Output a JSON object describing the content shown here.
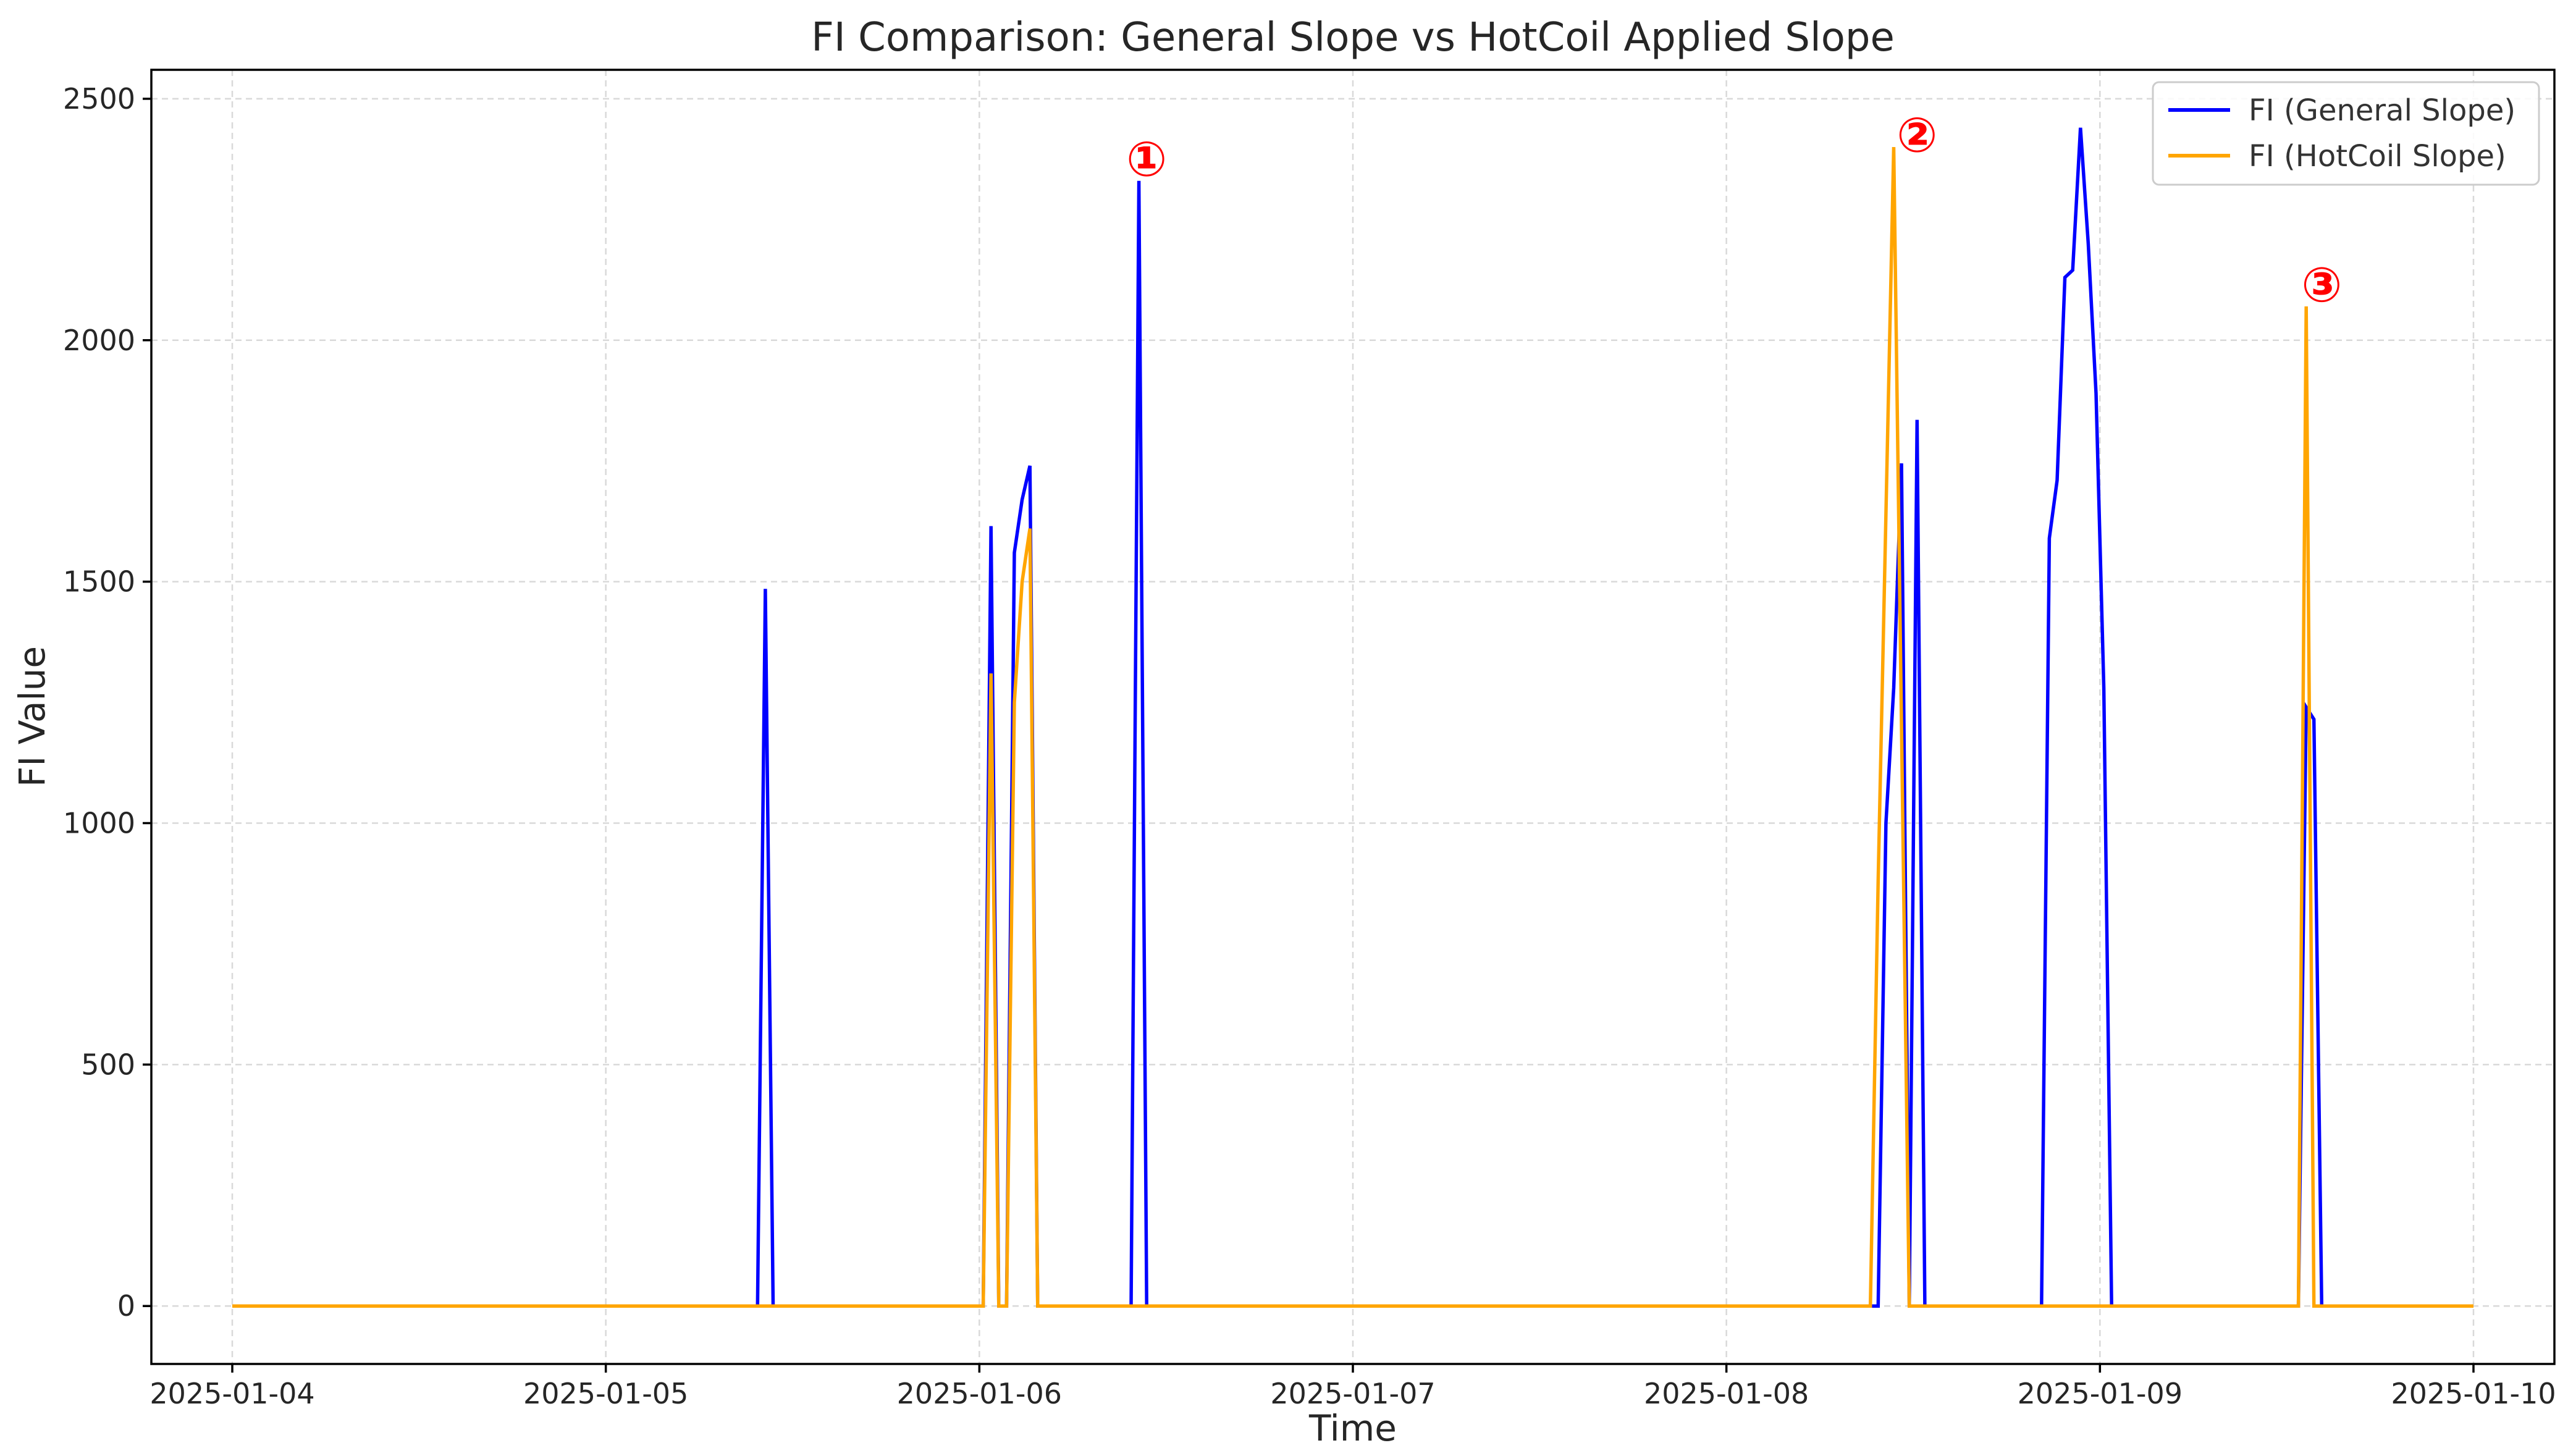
{
  "chart_data": {
    "type": "line",
    "title": "FI Comparison: General Slope vs HotCoil Applied Slope",
    "xlabel": "Time",
    "ylabel": "FI Value",
    "x_axis_type": "datetime",
    "xlim": [
      "2025-01-03 18:48",
      "2025-01-10 05:12"
    ],
    "ylim": [
      -120,
      2560
    ],
    "xticks": [
      "2025-01-04",
      "2025-01-05",
      "2025-01-06",
      "2025-01-07",
      "2025-01-08",
      "2025-01-09",
      "2025-01-10"
    ],
    "yticks": [
      0,
      500,
      1000,
      1500,
      2000,
      2500
    ],
    "grid": true,
    "legend_position": "top-right",
    "series": [
      {
        "name": "FI (General Slope)",
        "color": "#0000ff",
        "points": [
          [
            "2025-01-04 00:00",
            0
          ],
          [
            "2025-01-05 09:45",
            0
          ],
          [
            "2025-01-05 10:15",
            1485
          ],
          [
            "2025-01-05 10:45",
            0
          ],
          [
            "2025-01-06 00:15",
            0
          ],
          [
            "2025-01-06 00:45",
            1615
          ],
          [
            "2025-01-06 01:15",
            0
          ],
          [
            "2025-01-06 01:45",
            0
          ],
          [
            "2025-01-06 02:15",
            1560
          ],
          [
            "2025-01-06 02:45",
            1670
          ],
          [
            "2025-01-06 03:15",
            1740
          ],
          [
            "2025-01-06 03:45",
            0
          ],
          [
            "2025-01-06 09:45",
            0
          ],
          [
            "2025-01-06 10:15",
            2330
          ],
          [
            "2025-01-06 10:45",
            0
          ],
          [
            "2025-01-08 09:45",
            0
          ],
          [
            "2025-01-08 10:15",
            1000
          ],
          [
            "2025-01-08 10:45",
            1280
          ],
          [
            "2025-01-08 11:15",
            1745
          ],
          [
            "2025-01-08 11:45",
            0
          ],
          [
            "2025-01-08 12:15",
            1835
          ],
          [
            "2025-01-08 12:45",
            0
          ],
          [
            "2025-01-08 20:15",
            0
          ],
          [
            "2025-01-08 20:45",
            1590
          ],
          [
            "2025-01-08 21:15",
            1710
          ],
          [
            "2025-01-08 21:45",
            2130
          ],
          [
            "2025-01-08 22:15",
            2145
          ],
          [
            "2025-01-08 22:45",
            2440
          ],
          [
            "2025-01-08 23:15",
            2200
          ],
          [
            "2025-01-08 23:45",
            1890
          ],
          [
            "2025-01-09 00:15",
            1280
          ],
          [
            "2025-01-09 00:45",
            0
          ],
          [
            "2025-01-09 12:45",
            0
          ],
          [
            "2025-01-09 13:15",
            1240
          ],
          [
            "2025-01-09 13:45",
            1215
          ],
          [
            "2025-01-09 14:15",
            0
          ],
          [
            "2025-01-10 00:00",
            0
          ]
        ]
      },
      {
        "name": "FI (HotCoil Slope)",
        "color": "#ffa500",
        "points": [
          [
            "2025-01-04 00:00",
            0
          ],
          [
            "2025-01-06 00:15",
            0
          ],
          [
            "2025-01-06 00:45",
            1310
          ],
          [
            "2025-01-06 01:15",
            0
          ],
          [
            "2025-01-06 01:45",
            0
          ],
          [
            "2025-01-06 02:15",
            1250
          ],
          [
            "2025-01-06 02:45",
            1500
          ],
          [
            "2025-01-06 03:15",
            1610
          ],
          [
            "2025-01-06 03:45",
            0
          ],
          [
            "2025-01-08 09:15",
            0
          ],
          [
            "2025-01-08 09:45",
            880
          ],
          [
            "2025-01-08 10:45",
            2400
          ],
          [
            "2025-01-08 11:45",
            0
          ],
          [
            "2025-01-09 12:45",
            0
          ],
          [
            "2025-01-09 13:15",
            2070
          ],
          [
            "2025-01-09 13:45",
            0
          ],
          [
            "2025-01-10 00:00",
            0
          ]
        ]
      }
    ],
    "annotations": [
      {
        "label": "①",
        "x": "2025-01-06 10:45",
        "y": 2375
      },
      {
        "label": "②",
        "x": "2025-01-08 12:15",
        "y": 2425
      },
      {
        "label": "③",
        "x": "2025-01-09 14:15",
        "y": 2115
      }
    ]
  }
}
